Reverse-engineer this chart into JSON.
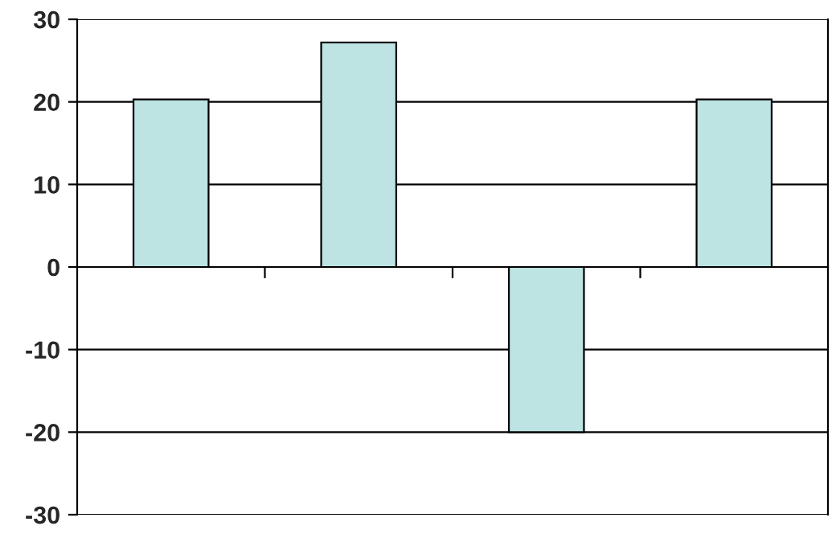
{
  "chart_data": {
    "type": "bar",
    "categories": [
      null,
      null,
      null,
      null
    ],
    "values": [
      20.3,
      27.2,
      -20,
      20.3
    ],
    "color": "#bde3e3",
    "ylim": [
      -30,
      30
    ],
    "yticks": [
      -30,
      -20,
      -10,
      0,
      10,
      20,
      30
    ],
    "grid": "y"
  }
}
